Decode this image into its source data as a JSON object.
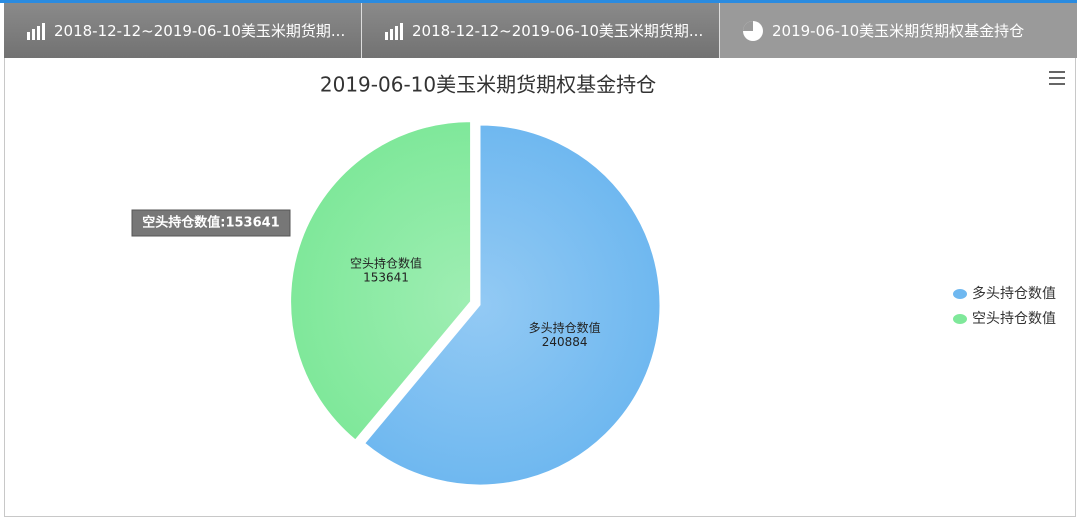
{
  "tabs": [
    "2018-12-12~2019-06-10美玉米期货期...",
    "2018-12-12~2019-06-10美玉米期货期...",
    "2019-06-10美玉米期货期权基金持仓"
  ],
  "chart_data": {
    "type": "pie",
    "title": "2019-06-10美玉米期货期权基金持仓",
    "categories": [
      "多头持仓数值",
      "空头持仓数值"
    ],
    "values": [
      240884,
      153641
    ],
    "colors": [
      "#6fb8f0",
      "#7fe89a"
    ],
    "sliced": [
      false,
      true
    ],
    "legend": "right",
    "tooltip": "空头持仓数值:153641"
  }
}
